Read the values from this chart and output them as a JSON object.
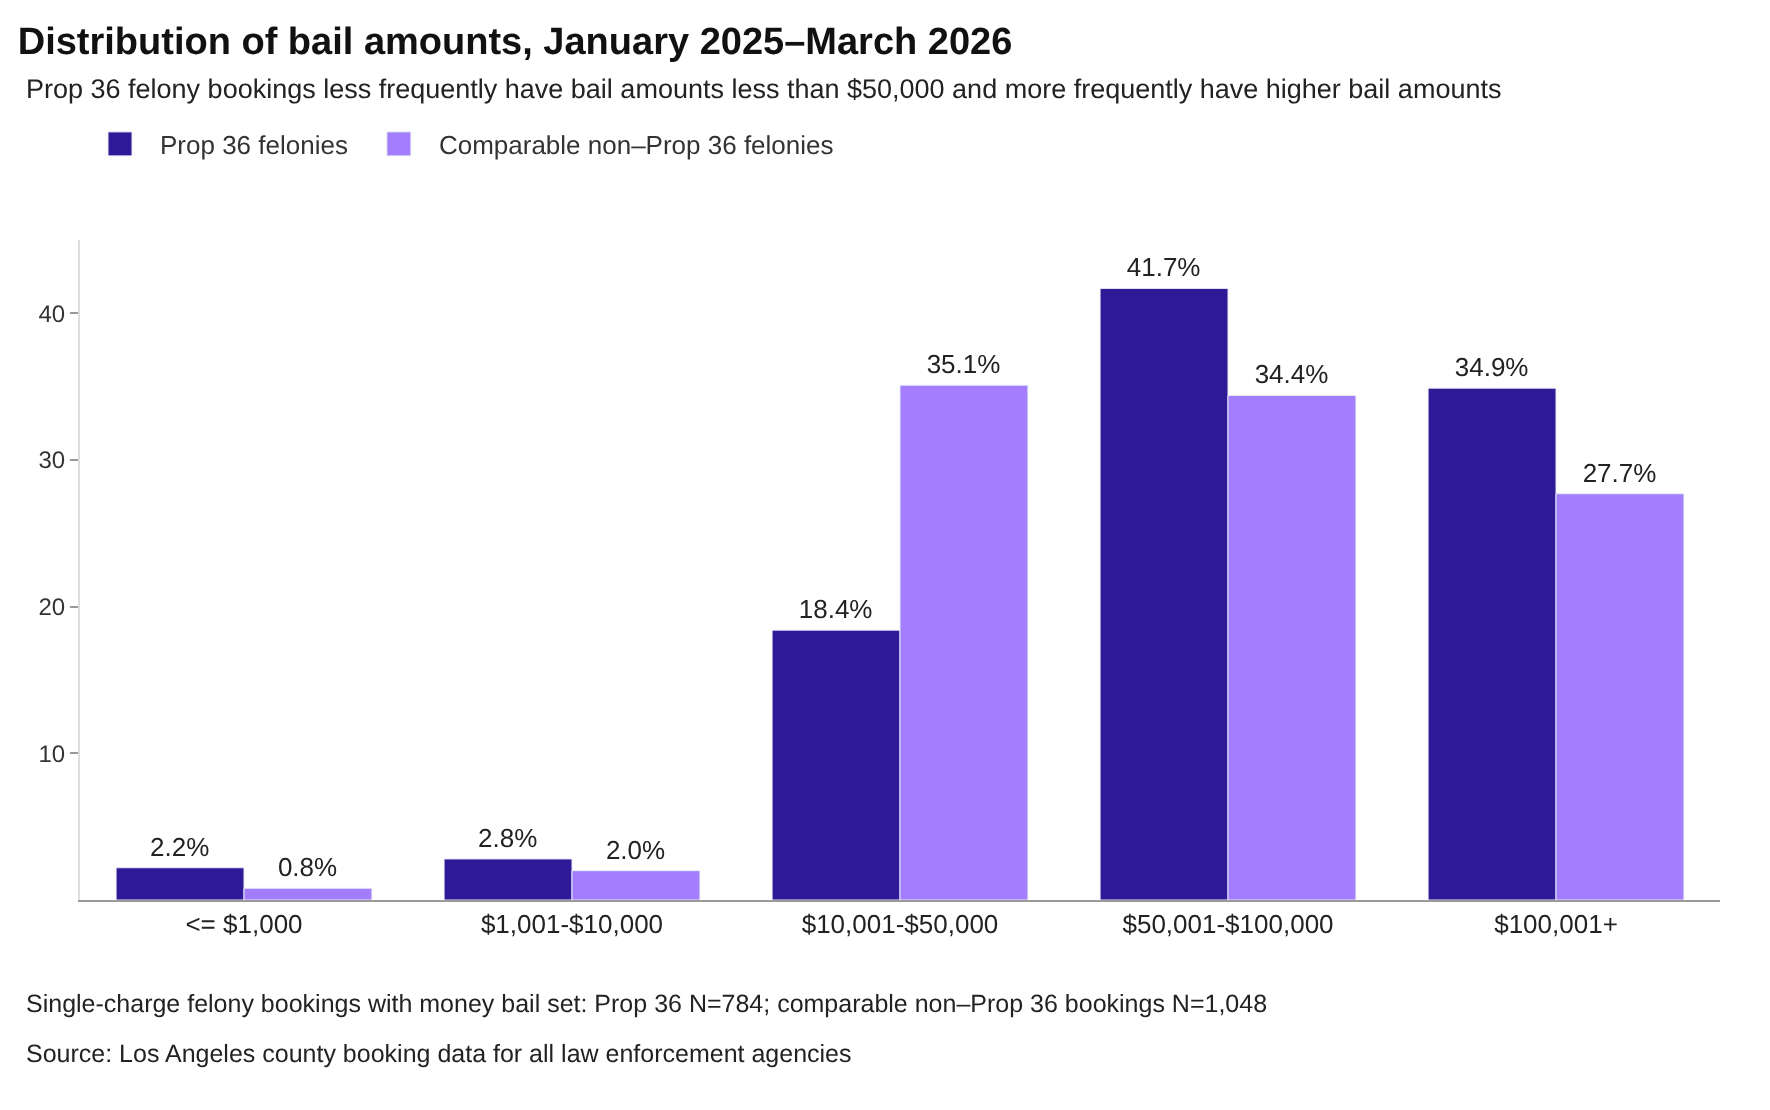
{
  "chart_data": {
    "type": "bar",
    "title": "Distribution of bail amounts, January 2025–March 2026",
    "subtitle": "Prop 36 felony bookings less frequently have bail amounts less than $50,000 and more frequently have higher bail amounts",
    "categories": [
      "<= $1,000",
      "$1,001-$10,000",
      "$10,001-$50,000",
      "$50,001-$100,000",
      "$100,001+"
    ],
    "series": [
      {
        "name": "Prop 36 felonies",
        "color": "#2e1a96",
        "values": [
          2.2,
          2.8,
          18.4,
          41.7,
          34.9
        ],
        "value_labels": [
          "2.2%",
          "2.8%",
          "18.4%",
          "41.7%",
          "34.9%"
        ]
      },
      {
        "name": "Comparable non–Prop 36 felonies",
        "color": "#a47dfc",
        "values": [
          0.8,
          2.0,
          35.1,
          34.4,
          27.7
        ],
        "value_labels": [
          "0.8%",
          "2.0%",
          "35.1%",
          "34.4%",
          "27.7%"
        ]
      }
    ],
    "ylim": [
      0,
      45
    ],
    "yticks": [
      10,
      20,
      30,
      40
    ],
    "legend": "top left",
    "annotations": [
      "Single-charge felony bookings with money bail set: Prop 36 N=784; comparable non–Prop 36 bookings N=1,048",
      "Source: Los Angeles county booking data for all law enforcement agencies"
    ]
  }
}
